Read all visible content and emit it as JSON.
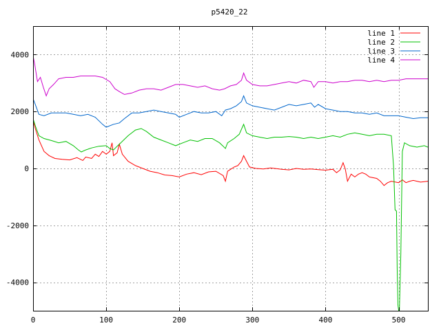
{
  "chart_data": {
    "type": "line",
    "title": "p5420_22",
    "xlabel": "",
    "ylabel": "",
    "xlim": [
      0,
      540
    ],
    "ylim": [
      -5000,
      5000
    ],
    "x_ticks": [
      0,
      100,
      200,
      300,
      400,
      500
    ],
    "y_ticks": [
      -4000,
      -2000,
      0,
      2000,
      4000
    ],
    "grid": true,
    "legend_position": "top-right",
    "series": [
      {
        "name": "line 1",
        "color": "#ff0000",
        "points": [
          [
            0,
            1700
          ],
          [
            3,
            1400
          ],
          [
            8,
            1000
          ],
          [
            15,
            600
          ],
          [
            22,
            450
          ],
          [
            30,
            350
          ],
          [
            40,
            320
          ],
          [
            50,
            300
          ],
          [
            60,
            380
          ],
          [
            68,
            280
          ],
          [
            72,
            400
          ],
          [
            80,
            350
          ],
          [
            85,
            500
          ],
          [
            90,
            420
          ],
          [
            95,
            600
          ],
          [
            100,
            500
          ],
          [
            105,
            600
          ],
          [
            108,
            900
          ],
          [
            110,
            450
          ],
          [
            115,
            550
          ],
          [
            118,
            850
          ],
          [
            122,
            500
          ],
          [
            130,
            250
          ],
          [
            140,
            100
          ],
          [
            150,
            0
          ],
          [
            160,
            -100
          ],
          [
            170,
            -150
          ],
          [
            180,
            -230
          ],
          [
            190,
            -250
          ],
          [
            200,
            -300
          ],
          [
            210,
            -200
          ],
          [
            220,
            -150
          ],
          [
            230,
            -220
          ],
          [
            240,
            -120
          ],
          [
            250,
            -100
          ],
          [
            260,
            -250
          ],
          [
            263,
            -450
          ],
          [
            266,
            -100
          ],
          [
            275,
            50
          ],
          [
            280,
            100
          ],
          [
            285,
            250
          ],
          [
            288,
            450
          ],
          [
            292,
            250
          ],
          [
            296,
            50
          ],
          [
            305,
            0
          ],
          [
            315,
            -20
          ],
          [
            325,
            20
          ],
          [
            340,
            -30
          ],
          [
            350,
            -50
          ],
          [
            360,
            0
          ],
          [
            370,
            -30
          ],
          [
            380,
            -20
          ],
          [
            390,
            -40
          ],
          [
            400,
            -60
          ],
          [
            410,
            -30
          ],
          [
            415,
            -150
          ],
          [
            420,
            -50
          ],
          [
            424,
            200
          ],
          [
            427,
            -20
          ],
          [
            430,
            -450
          ],
          [
            435,
            -200
          ],
          [
            440,
            -300
          ],
          [
            445,
            -200
          ],
          [
            450,
            -150
          ],
          [
            455,
            -200
          ],
          [
            460,
            -300
          ],
          [
            470,
            -350
          ],
          [
            475,
            -450
          ],
          [
            480,
            -600
          ],
          [
            485,
            -500
          ],
          [
            490,
            -450
          ],
          [
            500,
            -500
          ],
          [
            505,
            -400
          ],
          [
            510,
            -500
          ],
          [
            515,
            -450
          ],
          [
            520,
            -420
          ],
          [
            530,
            -480
          ],
          [
            540,
            -450
          ]
        ]
      },
      {
        "name": "line 2",
        "color": "#00c000",
        "points": [
          [
            0,
            1750
          ],
          [
            3,
            1500
          ],
          [
            8,
            1150
          ],
          [
            15,
            1050
          ],
          [
            25,
            980
          ],
          [
            35,
            900
          ],
          [
            45,
            950
          ],
          [
            55,
            800
          ],
          [
            62,
            650
          ],
          [
            66,
            580
          ],
          [
            72,
            650
          ],
          [
            80,
            720
          ],
          [
            90,
            780
          ],
          [
            100,
            800
          ],
          [
            105,
            700
          ],
          [
            110,
            650
          ],
          [
            115,
            780
          ],
          [
            120,
            900
          ],
          [
            130,
            1150
          ],
          [
            140,
            1350
          ],
          [
            148,
            1400
          ],
          [
            155,
            1300
          ],
          [
            165,
            1100
          ],
          [
            175,
            1000
          ],
          [
            185,
            900
          ],
          [
            195,
            800
          ],
          [
            205,
            900
          ],
          [
            215,
            1000
          ],
          [
            225,
            950
          ],
          [
            235,
            1050
          ],
          [
            245,
            1050
          ],
          [
            255,
            900
          ],
          [
            260,
            780
          ],
          [
            263,
            700
          ],
          [
            266,
            900
          ],
          [
            275,
            1050
          ],
          [
            282,
            1200
          ],
          [
            288,
            1550
          ],
          [
            292,
            1250
          ],
          [
            300,
            1150
          ],
          [
            310,
            1100
          ],
          [
            320,
            1050
          ],
          [
            330,
            1100
          ],
          [
            340,
            1100
          ],
          [
            350,
            1120
          ],
          [
            360,
            1100
          ],
          [
            370,
            1050
          ],
          [
            380,
            1100
          ],
          [
            390,
            1050
          ],
          [
            400,
            1100
          ],
          [
            410,
            1150
          ],
          [
            420,
            1100
          ],
          [
            430,
            1200
          ],
          [
            440,
            1250
          ],
          [
            450,
            1200
          ],
          [
            460,
            1150
          ],
          [
            470,
            1200
          ],
          [
            480,
            1200
          ],
          [
            490,
            1150
          ],
          [
            493,
            100
          ],
          [
            495,
            -1450
          ],
          [
            497,
            -1500
          ],
          [
            498,
            -3500
          ],
          [
            499,
            -4800
          ],
          [
            500,
            -5000
          ],
          [
            501,
            -5000
          ],
          [
            503,
            -3000
          ],
          [
            505,
            600
          ],
          [
            508,
            900
          ],
          [
            515,
            800
          ],
          [
            525,
            750
          ],
          [
            535,
            800
          ],
          [
            540,
            750
          ]
        ]
      },
      {
        "name": "line 3",
        "color": "#0066cc",
        "points": [
          [
            0,
            2450
          ],
          [
            3,
            2250
          ],
          [
            8,
            1900
          ],
          [
            15,
            1850
          ],
          [
            25,
            1950
          ],
          [
            35,
            1950
          ],
          [
            45,
            1950
          ],
          [
            55,
            1900
          ],
          [
            65,
            1850
          ],
          [
            75,
            1900
          ],
          [
            85,
            1800
          ],
          [
            95,
            1550
          ],
          [
            100,
            1450
          ],
          [
            110,
            1550
          ],
          [
            118,
            1600
          ],
          [
            125,
            1750
          ],
          [
            135,
            1950
          ],
          [
            145,
            1950
          ],
          [
            155,
            2000
          ],
          [
            165,
            2050
          ],
          [
            175,
            2000
          ],
          [
            185,
            1950
          ],
          [
            195,
            1900
          ],
          [
            200,
            1800
          ],
          [
            210,
            1900
          ],
          [
            220,
            2000
          ],
          [
            230,
            1950
          ],
          [
            240,
            1950
          ],
          [
            250,
            2000
          ],
          [
            258,
            1850
          ],
          [
            263,
            2050
          ],
          [
            270,
            2100
          ],
          [
            278,
            2200
          ],
          [
            285,
            2350
          ],
          [
            288,
            2550
          ],
          [
            292,
            2300
          ],
          [
            300,
            2200
          ],
          [
            310,
            2150
          ],
          [
            320,
            2100
          ],
          [
            330,
            2050
          ],
          [
            340,
            2150
          ],
          [
            350,
            2250
          ],
          [
            360,
            2200
          ],
          [
            370,
            2250
          ],
          [
            380,
            2300
          ],
          [
            385,
            2150
          ],
          [
            390,
            2250
          ],
          [
            400,
            2100
          ],
          [
            410,
            2050
          ],
          [
            420,
            2000
          ],
          [
            430,
            2000
          ],
          [
            440,
            1950
          ],
          [
            450,
            1950
          ],
          [
            460,
            1900
          ],
          [
            470,
            1950
          ],
          [
            480,
            1850
          ],
          [
            490,
            1850
          ],
          [
            500,
            1850
          ],
          [
            510,
            1800
          ],
          [
            520,
            1750
          ],
          [
            530,
            1780
          ],
          [
            540,
            1780
          ]
        ]
      },
      {
        "name": "line 4",
        "color": "#cc00cc",
        "points": [
          [
            0,
            3950
          ],
          [
            2,
            3700
          ],
          [
            6,
            3050
          ],
          [
            10,
            3200
          ],
          [
            14,
            2850
          ],
          [
            18,
            2550
          ],
          [
            22,
            2800
          ],
          [
            28,
            2950
          ],
          [
            35,
            3150
          ],
          [
            45,
            3200
          ],
          [
            55,
            3200
          ],
          [
            65,
            3250
          ],
          [
            75,
            3250
          ],
          [
            85,
            3250
          ],
          [
            95,
            3200
          ],
          [
            105,
            3050
          ],
          [
            112,
            2800
          ],
          [
            118,
            2700
          ],
          [
            125,
            2600
          ],
          [
            135,
            2650
          ],
          [
            145,
            2750
          ],
          [
            155,
            2800
          ],
          [
            165,
            2800
          ],
          [
            175,
            2750
          ],
          [
            185,
            2850
          ],
          [
            195,
            2950
          ],
          [
            205,
            2950
          ],
          [
            215,
            2900
          ],
          [
            225,
            2850
          ],
          [
            235,
            2900
          ],
          [
            245,
            2800
          ],
          [
            255,
            2750
          ],
          [
            262,
            2800
          ],
          [
            270,
            2900
          ],
          [
            278,
            2950
          ],
          [
            285,
            3100
          ],
          [
            288,
            3350
          ],
          [
            292,
            3100
          ],
          [
            300,
            2950
          ],
          [
            310,
            2900
          ],
          [
            320,
            2900
          ],
          [
            330,
            2950
          ],
          [
            340,
            3000
          ],
          [
            350,
            3050
          ],
          [
            360,
            3000
          ],
          [
            370,
            3100
          ],
          [
            380,
            3050
          ],
          [
            384,
            2850
          ],
          [
            390,
            3050
          ],
          [
            400,
            3050
          ],
          [
            410,
            3000
          ],
          [
            420,
            3050
          ],
          [
            430,
            3050
          ],
          [
            440,
            3100
          ],
          [
            450,
            3100
          ],
          [
            460,
            3050
          ],
          [
            470,
            3100
          ],
          [
            480,
            3050
          ],
          [
            490,
            3100
          ],
          [
            500,
            3100
          ],
          [
            510,
            3150
          ],
          [
            520,
            3150
          ],
          [
            530,
            3150
          ],
          [
            540,
            3150
          ]
        ]
      }
    ]
  }
}
